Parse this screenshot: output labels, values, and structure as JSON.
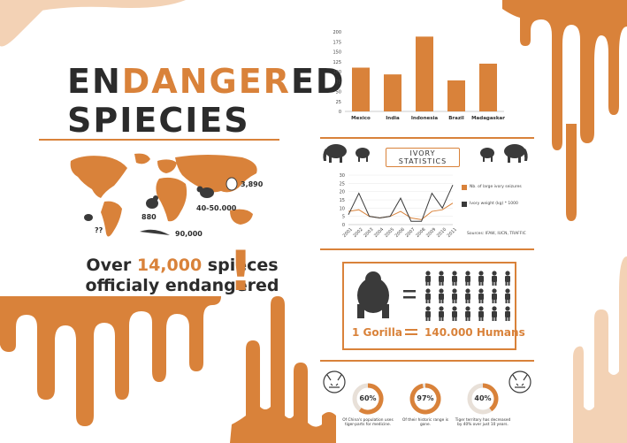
{
  "title": {
    "line1_a": "EN",
    "line1_b": "DANGER",
    "line1_c": "ED",
    "line2": "SPIECIES"
  },
  "map_labels": {
    "north_asia": "3,890",
    "asia": "40-50.000",
    "africa": "880",
    "south_america": "??",
    "ocean": "90,000"
  },
  "headline": {
    "line1_a": "Over ",
    "line1_b": "14,000",
    "line1_c": " spieces",
    "line2": "officialy endangered"
  },
  "colors": {
    "accent": "#d9823a",
    "dark": "#3a3a3a"
  },
  "bar_chart": {
    "chart_data": {
      "type": "bar",
      "categories": [
        "Mexico",
        "India",
        "Indonesia",
        "Brazil",
        "Madagaskar"
      ],
      "values": [
        110,
        93,
        188,
        78,
        120
      ],
      "yticks": [
        "200",
        "175",
        "150",
        "125",
        "100",
        "75",
        "50",
        "25",
        "0"
      ],
      "ylim": [
        0,
        200
      ]
    }
  },
  "ivory": {
    "title": "IVORY STATISTICS",
    "legend": [
      "Nb. of large ivory seizures",
      "Ivory weight (kg) * 1000"
    ],
    "source": "Sources: IFAW, IUCN, TRAFFIC",
    "chart_data": {
      "type": "line",
      "x": [
        "2001",
        "2002",
        "2003",
        "2004",
        "2005",
        "2006",
        "2007",
        "2008",
        "2009",
        "2010",
        "2011"
      ],
      "yticks": [
        "30",
        "25",
        "20",
        "15",
        "10",
        "5",
        "0"
      ],
      "ylim": [
        0,
        30
      ],
      "series": [
        {
          "name": "Nb. of large ivory seizures",
          "values": [
            8,
            9,
            5,
            4,
            5,
            8,
            4,
            3,
            8,
            9,
            13
          ]
        },
        {
          "name": "Ivory weight (kg) * 1000",
          "values": [
            6,
            19,
            5,
            4,
            5,
            16,
            2,
            2,
            19,
            10,
            24
          ]
        }
      ]
    }
  },
  "gorilla": {
    "left": "1 Gorilla",
    "right": "140.000 Humans"
  },
  "tigers": [
    {
      "pct": "60%",
      "value": 0.6,
      "caption": "Of China's population uses tiger-parts for medicine."
    },
    {
      "pct": "97%",
      "value": 0.97,
      "caption": "Of their historic range is gone."
    },
    {
      "pct": "40%",
      "value": 0.4,
      "caption": "Tiger territory has decreased by 40% over just 10 years."
    }
  ]
}
